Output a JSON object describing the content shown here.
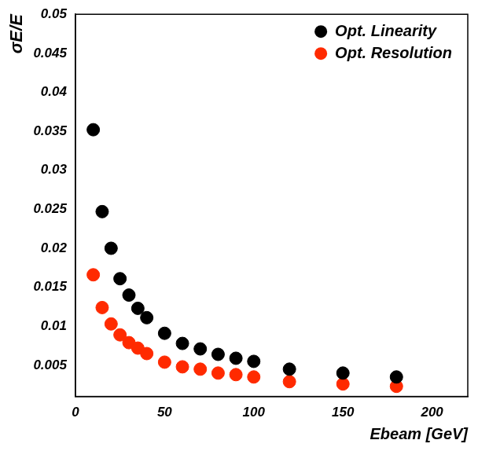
{
  "chart_data": {
    "type": "scatter",
    "x_label": "Ebeam [GeV]",
    "y_label": "σE/E",
    "x": [
      10,
      15,
      20,
      25,
      30,
      35,
      40,
      50,
      60,
      70,
      80,
      90,
      100,
      120,
      150,
      180
    ],
    "series": [
      {
        "name": "Opt. Linearity",
        "color": "#000000",
        "marker": "circle",
        "values": [
          0.0352,
          0.0247,
          0.02,
          0.0161,
          0.014,
          0.0123,
          0.0111,
          0.0091,
          0.0078,
          0.0071,
          0.0064,
          0.0059,
          0.0055,
          0.0045,
          0.004,
          0.0035
        ]
      },
      {
        "name": "Opt. Resolution",
        "color": "#ff2a00",
        "marker": "circle",
        "values": [
          0.0166,
          0.0124,
          0.0103,
          0.0089,
          0.0079,
          0.0072,
          0.0065,
          0.0054,
          0.0048,
          0.0045,
          0.004,
          0.0038,
          0.0035,
          0.0029,
          0.0026,
          0.0023
        ]
      }
    ],
    "xlim": [
      0,
      220
    ],
    "xticks": [
      0,
      50,
      100,
      150,
      200
    ],
    "ylim": [
      0.001,
      0.05
    ],
    "yticks": [
      0.005,
      0.01,
      0.015,
      0.02,
      0.025,
      0.03,
      0.035,
      0.04,
      0.045,
      0.05
    ],
    "grid": false,
    "legend": "upper right"
  }
}
